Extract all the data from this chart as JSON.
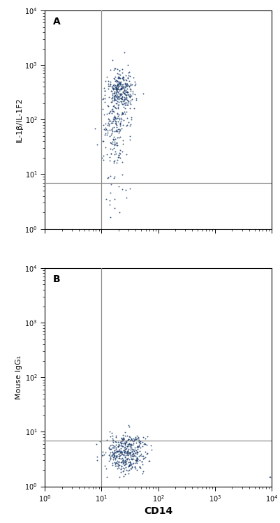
{
  "panel_A_label": "A",
  "panel_B_label": "B",
  "ylabel_A": "IL-1β/IL-1F2",
  "ylabel_B": "Mouse IgG₁",
  "xlabel": "CD14",
  "xlim": [
    1.0,
    10000.0
  ],
  "ylim": [
    1.0,
    10000.0
  ],
  "vline_x": 10.0,
  "hline_y": 7.0,
  "dot_color": "#1a3a6b",
  "dot_size": 1.8,
  "dot_alpha": 0.85,
  "bg_color": "#ffffff",
  "line_color": "#888888",
  "fontsize_label": 8,
  "fontsize_panel": 10,
  "fontsize_tick": 7
}
